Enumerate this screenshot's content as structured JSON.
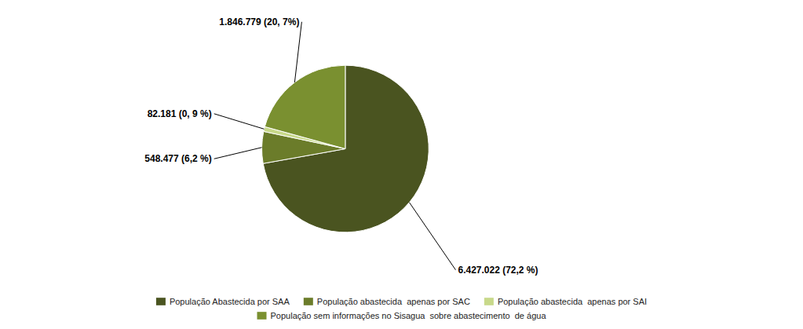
{
  "chart_data": {
    "type": "pie",
    "categories": [
      "População Abastecida por SAA",
      "População abastecida  apenas por SAC",
      "População abastecida  apenas por SAI",
      "População sem informações no Sisagua  sobre abastecimento  de água"
    ],
    "values": [
      6427022,
      548477,
      82181,
      1846779
    ],
    "value_labels": [
      "6.427.022 (72,2 %)",
      "548.477 (6,2 %)",
      "82.181 (0, 9 %)",
      "1.846.779 (20, 7%)"
    ],
    "colors": [
      "#4a5420",
      "#6b7c2a",
      "#c8d98a",
      "#7a9030"
    ],
    "data_labels": true,
    "legend": "bottom"
  }
}
